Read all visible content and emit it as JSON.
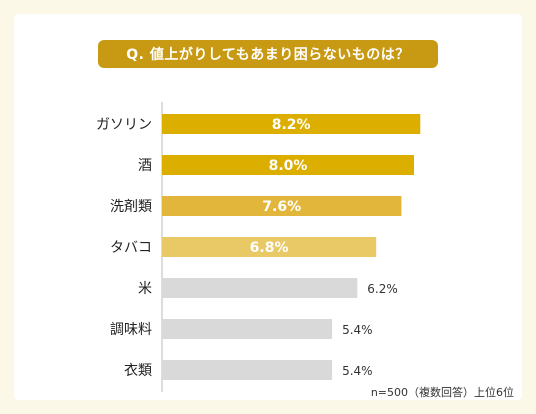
{
  "chart_data": {
    "type": "bar",
    "orientation": "horizontal",
    "title": "Q. 値上がりしてもあまり困らないものは？",
    "note": "n=500（複数回答）上位6位",
    "categories": [
      "ガソリン",
      "酒",
      "洗剤類",
      "タバコ",
      "米",
      "調味料",
      "衣類"
    ],
    "values": [
      8.2,
      8.0,
      7.6,
      6.8,
      6.2,
      5.4,
      5.4
    ],
    "labels": [
      "8.2%",
      "8.0%",
      "7.6%",
      "6.8%",
      "6.2%",
      "5.4%",
      "5.4%"
    ],
    "xlim": [
      0,
      10
    ],
    "grid": false,
    "colors": [
      "#dcae00",
      "#dcae00",
      "#e2b63a",
      "#e9c866",
      "#d9d9d9",
      "#d9d9d9",
      "#d9d9d9"
    ],
    "label_inside": [
      true,
      true,
      true,
      true,
      false,
      false,
      false
    ]
  }
}
